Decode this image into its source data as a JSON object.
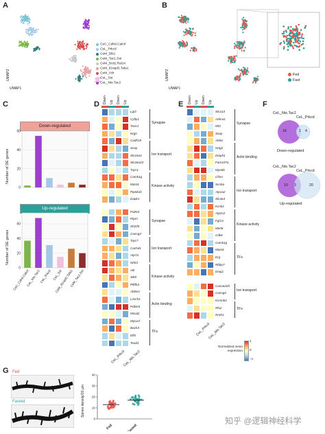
{
  "panels": {
    "A": "A",
    "B": "B",
    "C": "C",
    "D": "D",
    "E": "E",
    "F": "F",
    "G": "G"
  },
  "umap_axes": {
    "x": "UMAP1",
    "y": "UMAP2"
  },
  "panelA_legend": [
    {
      "label": "CeC_Cdh9.Calcrl",
      "color": "#7cc4d6"
    },
    {
      "label": "CeL_Prkcd",
      "color": "#a6c8e8"
    },
    {
      "label": "CeM_Dlk1",
      "color": "#2e7d7a"
    },
    {
      "label": "CeM_Tac1.Sst",
      "color": "#7ab648"
    },
    {
      "label": "CeM_Drd2.Ral14",
      "color": "#c9c9c9"
    },
    {
      "label": "CeM_Il1rapl2.Tafa1",
      "color": "#e8a0a0"
    },
    {
      "label": "CeM_Vdr",
      "color": "#d94f4f"
    },
    {
      "label": "CeL_Sst",
      "color": "#f0c0e0"
    },
    {
      "label": "CeL_Nts.Tac2",
      "color": "#9b3fd0"
    }
  ],
  "panelB_legend": [
    {
      "label": "Fed",
      "color": "#e8564f"
    },
    {
      "label": "Fast",
      "color": "#2aa198"
    }
  ],
  "panelC": {
    "ylabel": "Number of DE genes",
    "down_title": "Down-regulated",
    "up_title": "Up-regulated",
    "down_color": "#f4a09a",
    "up_color": "#2aa198"
  },
  "chart_data": [
    {
      "type": "bar",
      "title": "Down-regulated",
      "ylabel": "Number of DE genes",
      "categories": [
        "CeC_Cdh9.Calcrl",
        "CeL_Nts.Tac2",
        "CeL_Prkcd",
        "CeL_Sst",
        "CeM_Il1rapl2.Tafa1",
        "CeM_Tac1.Sst"
      ],
      "values": [
        2,
        55,
        10,
        3,
        5,
        3
      ],
      "colors": [
        "#7ab648",
        "#9b3fd0",
        "#a6c8e8",
        "#f0c0e0",
        "#c97b3a",
        "#8b2e2e"
      ],
      "ylim": [
        0,
        60
      ],
      "yticks": [
        0,
        20,
        40,
        60
      ]
    },
    {
      "type": "bar",
      "title": "Up-regulated",
      "ylabel": "Number of DE genes",
      "categories": [
        "CeC_Cdh9.Calcrl",
        "CeL_Nts.Tac2",
        "CeL_Prkcd",
        "CeL_Sst",
        "CeM_Il1rapl2.Tafa1",
        "CeM_Tac1.Sst"
      ],
      "values": [
        37,
        68,
        31,
        15,
        26,
        20
      ],
      "colors": [
        "#7ab648",
        "#9b3fd0",
        "#a6c8e8",
        "#f0c0e0",
        "#c97b3a",
        "#8b2e2e"
      ],
      "ylim": [
        0,
        75
      ],
      "yticks": [
        0,
        20,
        40,
        60
      ]
    }
  ],
  "panelD": {
    "col_headers": [
      "Down",
      "Up",
      "Down",
      "Up"
    ],
    "top_genes": [
      "Lgi3",
      "Cyfip1",
      "Tanc1",
      "Nrgn",
      "Cadh19",
      "Svop",
      "Slc24a4",
      "Slc26a10",
      "Trpc3",
      "Camk1g",
      "Mast4",
      "Ptp5k1b",
      "Dapk1"
    ],
    "top_cats": [
      "Synapse",
      "Ion transport",
      "Kinase activity"
    ],
    "bottom_genes": [
      "Palmd",
      "Ptprn",
      "Sh2d5",
      "Cacng4",
      "Trpc7",
      "Cachd1",
      "Atp7a",
      "Ntrk3",
      "Aik",
      "Sik9",
      "Pfkfb3",
      "Ablim1",
      "Limch1",
      "Pdlim5",
      "Mical2",
      "Myo1d",
      "Bach3",
      "Elf5",
      "Tead1"
    ],
    "bottom_cats": [
      "Synapse",
      "Ion transport",
      "Kinase activity",
      "Actin binding",
      "TFs"
    ],
    "x_labels": [
      "CeL_Prkcd",
      "CeL_Nts.Tac2"
    ]
  },
  "panelE": {
    "col_headers": [
      "Down",
      "Up",
      "Down",
      "Up"
    ],
    "top_genes": [
      "Slc1a3",
      "Adora1",
      "Mt3",
      "Svop",
      "Aldoc",
      "Nrtg2",
      "Diaph1",
      "Fam107a",
      "Myo5b",
      "Cfmn",
      "Scn5a",
      "Atp1a2",
      "Slc4a4",
      "Kcnk2",
      "Atp2c2",
      "Fgf13",
      "Mertk",
      "Cdk6",
      "Camk1g",
      "Mast4",
      "Erg",
      "Rbbp7",
      "Dnaj1"
    ],
    "top_cats": [
      "Synapse",
      "Actin binding",
      "Ion transport",
      "Kinase activity",
      "TFs"
    ],
    "bottom_genes": [
      "Cacna2d3",
      "Cacng4",
      "Kcnmb2",
      "Rfx2",
      "Rreb1"
    ],
    "bottom_cats": [
      "Ion transport",
      "TFs"
    ],
    "x_labels": [
      "CeL_Prkcd",
      "CeL_Nts.Tac2"
    ],
    "legend_title": "Normalized mean expression",
    "legend_ticks": [
      "1",
      "0",
      "−1"
    ]
  },
  "panelF": {
    "top_labels": [
      "CeL_Nts.Tac2",
      "CeL_Prkcd"
    ],
    "top_counts": [
      "18",
      "1",
      "4"
    ],
    "top_caption": "Down-regulated",
    "bottom_labels": [
      "CeL_Nts.Tac2",
      "CeL_Prkcd"
    ],
    "bottom_counts": [
      "10",
      "3",
      "20"
    ],
    "bottom_caption": "Up-regulated"
  },
  "panelG": {
    "fed_label": "Fed",
    "fasted_label": "Fasted",
    "ylabel": "Spines density/20 μm",
    "xlabels": [
      "Fed",
      "Fasted"
    ],
    "yticks": [
      "0",
      "10",
      "20",
      "30",
      "40"
    ]
  },
  "watermark": "知乎 @逻辑神经科学"
}
